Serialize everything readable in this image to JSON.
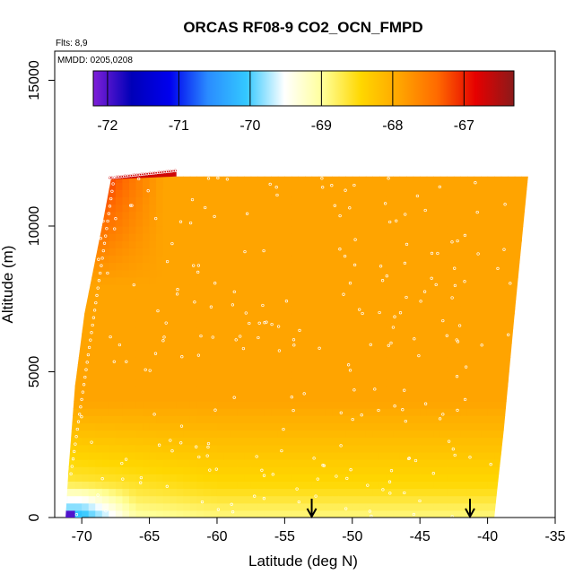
{
  "chart_data": {
    "type": "heatmap",
    "title": "ORCAS RF08-9 CO2_OCN_FMPD",
    "notes": [
      "Flts: 8,9",
      "MMDD: 0205,0208"
    ],
    "xlabel": "Latitude (deg N)",
    "ylabel": "Altitude (m)",
    "xlim": [
      -72,
      -35
    ],
    "ylim": [
      0,
      16000
    ],
    "xticks": [
      -70,
      -65,
      -60,
      -55,
      -50,
      -45,
      -40,
      -35
    ],
    "yticks": [
      0,
      5000,
      10000,
      15000
    ],
    "colorbar": {
      "range": [
        -72.2,
        -66.3
      ],
      "ticks": [
        -72,
        -71,
        -70,
        -69,
        -68,
        -67
      ],
      "colors": [
        "#7f1fd8",
        "#0000b8",
        "#0000ee",
        "#2a8cff",
        "#33c8ff",
        "#ffffff",
        "#ffff99",
        "#ffd700",
        "#ffa500",
        "#ff6a00",
        "#e60000",
        "#8b1a1a"
      ]
    },
    "grid": false,
    "domain_edges": {
      "south_boundary": [
        [
          -71.2,
          0
        ],
        [
          -71.0,
          1500
        ],
        [
          -70.5,
          4500
        ],
        [
          -69.8,
          7000
        ],
        [
          -68.5,
          10000
        ],
        [
          -67.8,
          11700
        ]
      ],
      "north_boundary": [
        [
          -37.0,
          11700
        ],
        [
          -38.0,
          7000
        ],
        [
          -38.8,
          3000
        ],
        [
          -39.3,
          900
        ],
        [
          -39.5,
          0
        ]
      ],
      "top_altitude": 11700
    },
    "field_regions": [
      {
        "name": "upper-polar-maximum",
        "lat_range": [
          -68.5,
          -64
        ],
        "alt_range": [
          9500,
          12000
        ],
        "value": -67.1
      },
      {
        "name": "mid-troposphere",
        "lat_range": [
          -64,
          -38
        ],
        "alt_range": [
          4000,
          11700
        ],
        "value": -67.9
      },
      {
        "name": "lower-layer",
        "lat_range": [
          -70,
          -40
        ],
        "alt_range": [
          1000,
          4000
        ],
        "value": -68.5
      },
      {
        "name": "near-surface-minimum",
        "lat_range": [
          -71.2,
          -66
        ],
        "alt_range": [
          0,
          1200
        ],
        "value": -70.2
      }
    ],
    "arrows": [
      {
        "lat": -53,
        "label": ""
      },
      {
        "lat": -41.3,
        "label": ""
      }
    ]
  }
}
